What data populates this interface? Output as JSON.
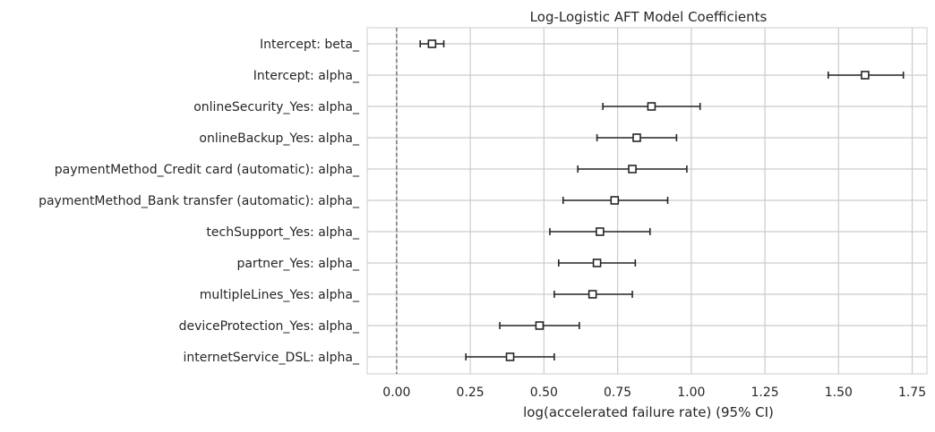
{
  "chart_data": {
    "type": "forest-errorbar",
    "title": "Log-Logistic AFT Model Coefficients",
    "xlabel": "log(accelerated failure rate) (95% CI)",
    "ylabel": "",
    "xlim": [
      -0.1,
      1.8
    ],
    "xticks": [
      0.0,
      0.25,
      0.5,
      0.75,
      1.0,
      1.25,
      1.5,
      1.75
    ],
    "xtick_labels": [
      "0.00",
      "0.25",
      "0.50",
      "0.75",
      "1.00",
      "1.25",
      "1.50",
      "1.75"
    ],
    "grid": true,
    "reference_line": 0.0,
    "rows": [
      {
        "label": "Intercept: beta_",
        "coef": 0.12,
        "lower": 0.08,
        "upper": 0.16
      },
      {
        "label": "Intercept: alpha_",
        "coef": 1.59,
        "lower": 1.465,
        "upper": 1.72
      },
      {
        "label": "onlineSecurity_Yes: alpha_",
        "coef": 0.865,
        "lower": 0.7,
        "upper": 1.03
      },
      {
        "label": "onlineBackup_Yes: alpha_",
        "coef": 0.815,
        "lower": 0.68,
        "upper": 0.95
      },
      {
        "label": "paymentMethod_Credit card (automatic): alpha_",
        "coef": 0.8,
        "lower": 0.615,
        "upper": 0.985
      },
      {
        "label": "paymentMethod_Bank transfer (automatic): alpha_",
        "coef": 0.74,
        "lower": 0.565,
        "upper": 0.92
      },
      {
        "label": "techSupport_Yes: alpha_",
        "coef": 0.69,
        "lower": 0.52,
        "upper": 0.86
      },
      {
        "label": "partner_Yes: alpha_",
        "coef": 0.68,
        "lower": 0.55,
        "upper": 0.81
      },
      {
        "label": "multipleLines_Yes: alpha_",
        "coef": 0.665,
        "lower": 0.535,
        "upper": 0.8
      },
      {
        "label": "deviceProtection_Yes: alpha_",
        "coef": 0.485,
        "lower": 0.35,
        "upper": 0.62
      },
      {
        "label": "internetService_DSL: alpha_",
        "coef": 0.385,
        "lower": 0.235,
        "upper": 0.535
      }
    ],
    "colors": {
      "grid": "#cccccc",
      "frame": "#cccccc",
      "marker_fill": "#ffffff",
      "marker_stroke": "#262626",
      "errorbar": "#262626",
      "reference_line": "#555555"
    }
  }
}
